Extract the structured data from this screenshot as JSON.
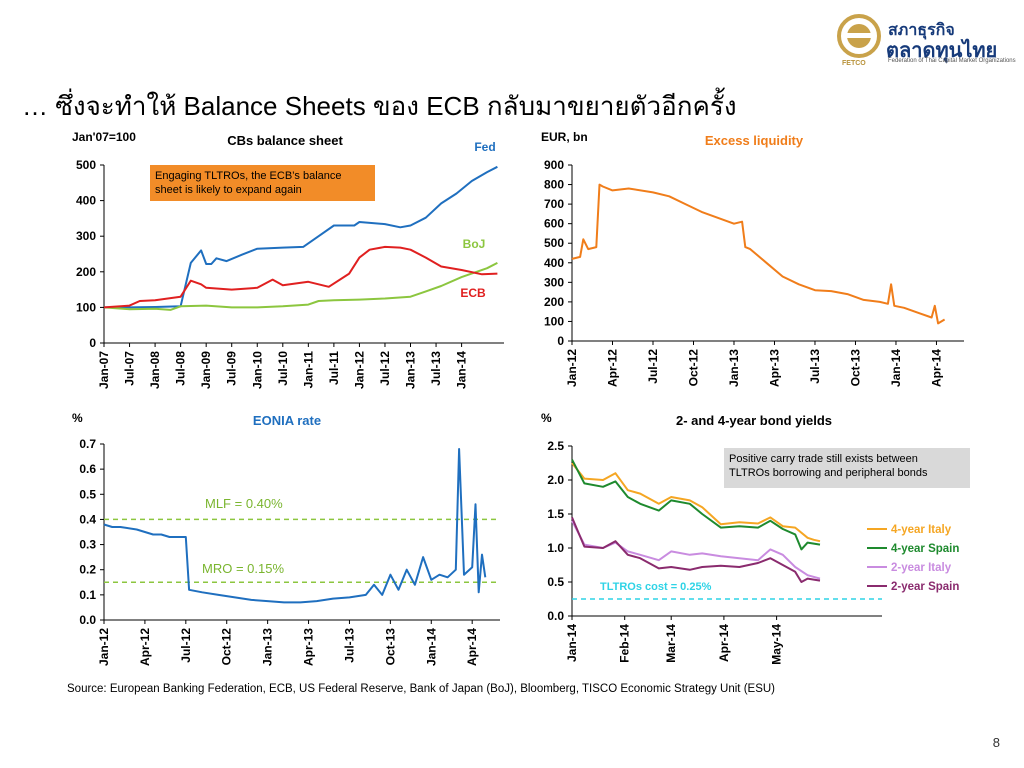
{
  "slide": {
    "title": "… ซึ่งจะทำให้ Balance Sheets ของ ECB กลับมาขยายตัวอีกครั้ง",
    "source": "Source: European Banking Federation, ECB, US Federal Reserve, Bank of Japan (BoJ), Bloomberg, TISCO Economic Strategy Unit (ESU)",
    "page_number": "8",
    "logo": {
      "line1": "สภาธุรกิจ",
      "line2": "ตลาดทุนไทย",
      "subtitle": "Federation of Thai Capital Market Organizations",
      "mark": "FETCO",
      "gold": "#c9a24a",
      "navy": "#163a7a"
    }
  },
  "chart_data": [
    {
      "type": "line",
      "title": "CBs balance sheet",
      "ylabel": "Jan'07=100",
      "ylim": [
        0,
        500
      ],
      "yticks": [
        0,
        100,
        200,
        300,
        400,
        500
      ],
      "xlim": [
        2007.0,
        2014.83
      ],
      "xticks": [
        {
          "label": "Jan-07",
          "x": 2007.0
        },
        {
          "label": "Jul-07",
          "x": 2007.5
        },
        {
          "label": "Jan-08",
          "x": 2008.0
        },
        {
          "label": "Jul-08",
          "x": 2008.5
        },
        {
          "label": "Jan-09",
          "x": 2009.0
        },
        {
          "label": "Jul-09",
          "x": 2009.5
        },
        {
          "label": "Jan-10",
          "x": 2010.0
        },
        {
          "label": "Jul-10",
          "x": 2010.5
        },
        {
          "label": "Jan-11",
          "x": 2011.0
        },
        {
          "label": "Jul-11",
          "x": 2011.5
        },
        {
          "label": "Jan-12",
          "x": 2012.0
        },
        {
          "label": "Jul-12",
          "x": 2012.5
        },
        {
          "label": "Jan-13",
          "x": 2013.0
        },
        {
          "label": "Jul-13",
          "x": 2013.5
        },
        {
          "label": "Jan-14",
          "x": 2014.0
        }
      ],
      "series": [
        {
          "name": "Fed",
          "color": "#1f6fbf",
          "x": [
            2007.0,
            2007.5,
            2008.0,
            2008.5,
            2008.7,
            2008.9,
            2009.0,
            2009.1,
            2009.2,
            2009.4,
            2009.7,
            2010.0,
            2010.5,
            2010.9,
            2011.2,
            2011.5,
            2011.9,
            2012.0,
            2012.5,
            2012.8,
            2013.0,
            2013.3,
            2013.6,
            2013.9,
            2014.2,
            2014.5,
            2014.7
          ],
          "y": [
            100,
            100,
            101,
            103,
            225,
            260,
            222,
            222,
            238,
            230,
            248,
            265,
            268,
            270,
            300,
            330,
            330,
            340,
            334,
            325,
            330,
            352,
            392,
            420,
            455,
            480,
            495
          ]
        },
        {
          "name": "BoJ",
          "color": "#8cc63f",
          "x": [
            2007.0,
            2007.5,
            2008.0,
            2008.3,
            2008.5,
            2009.0,
            2009.5,
            2010.0,
            2010.5,
            2011.0,
            2011.2,
            2011.5,
            2012.0,
            2012.5,
            2013.0,
            2013.3,
            2013.6,
            2014.0,
            2014.5,
            2014.7
          ],
          "y": [
            100,
            95,
            96,
            93,
            103,
            105,
            100,
            100,
            103,
            108,
            118,
            120,
            122,
            125,
            130,
            145,
            160,
            185,
            210,
            225
          ]
        },
        {
          "name": "ECB",
          "color": "#e02020",
          "x": [
            2007.0,
            2007.5,
            2007.7,
            2008.0,
            2008.5,
            2008.7,
            2008.9,
            2009.0,
            2009.5,
            2010.0,
            2010.3,
            2010.5,
            2011.0,
            2011.4,
            2011.8,
            2012.0,
            2012.2,
            2012.5,
            2012.8,
            2013.0,
            2013.3,
            2013.6,
            2014.0,
            2014.4,
            2014.7
          ],
          "y": [
            100,
            105,
            118,
            120,
            130,
            175,
            165,
            155,
            150,
            155,
            178,
            162,
            172,
            158,
            195,
            240,
            262,
            270,
            268,
            262,
            240,
            215,
            205,
            193,
            195
          ]
        }
      ],
      "annotations": [
        {
          "text": "Engaging TLTROs, the ECB’s balance sheet is likely to expand again",
          "fill": "#f28c28"
        }
      ]
    },
    {
      "type": "line",
      "title": "Excess liquidity",
      "ylabel": "EUR, bn",
      "ylim": [
        0,
        900
      ],
      "yticks": [
        0,
        100,
        200,
        300,
        400,
        500,
        600,
        700,
        800,
        900
      ],
      "xlim": [
        2012.0,
        2014.42
      ],
      "xticks": [
        {
          "label": "Jan-12",
          "x": 2012.0
        },
        {
          "label": "Apr-12",
          "x": 2012.25
        },
        {
          "label": "Jul-12",
          "x": 2012.5
        },
        {
          "label": "Oct-12",
          "x": 2012.75
        },
        {
          "label": "Jan-13",
          "x": 2013.0
        },
        {
          "label": "Apr-13",
          "x": 2013.25
        },
        {
          "label": "Jul-13",
          "x": 2013.5
        },
        {
          "label": "Oct-13",
          "x": 2013.75
        },
        {
          "label": "Jan-14",
          "x": 2014.0
        },
        {
          "label": "Apr-14",
          "x": 2014.25
        }
      ],
      "series": [
        {
          "name": "",
          "color": "#f07d1a",
          "x": [
            2012.0,
            2012.05,
            2012.07,
            2012.1,
            2012.15,
            2012.17,
            2012.19,
            2012.25,
            2012.35,
            2012.5,
            2012.6,
            2012.7,
            2012.8,
            2012.9,
            2013.0,
            2013.05,
            2013.07,
            2013.1,
            2013.2,
            2013.3,
            2013.4,
            2013.5,
            2013.6,
            2013.7,
            2013.8,
            2013.9,
            2013.95,
            2013.97,
            2013.99,
            2014.05,
            2014.15,
            2014.22,
            2014.24,
            2014.26,
            2014.3
          ],
          "y": [
            420,
            430,
            520,
            470,
            480,
            800,
            790,
            770,
            780,
            760,
            740,
            700,
            660,
            630,
            600,
            610,
            480,
            470,
            400,
            330,
            290,
            260,
            255,
            240,
            210,
            200,
            190,
            290,
            180,
            170,
            140,
            120,
            180,
            90,
            110
          ]
        }
      ]
    },
    {
      "type": "line",
      "title": "EONIA rate",
      "ylabel": "%",
      "ylim": [
        0,
        0.7
      ],
      "yticks": [
        "0.0",
        "0.1",
        "0.2",
        "0.3",
        "0.4",
        "0.5",
        "0.6",
        "0.7"
      ],
      "xlim": [
        2012.0,
        2014.42
      ],
      "xticks": [
        {
          "label": "Jan-12",
          "x": 2012.0
        },
        {
          "label": "Apr-12",
          "x": 2012.25
        },
        {
          "label": "Jul-12",
          "x": 2012.5
        },
        {
          "label": "Oct-12",
          "x": 2012.75
        },
        {
          "label": "Jan-13",
          "x": 2013.0
        },
        {
          "label": "Apr-13",
          "x": 2013.25
        },
        {
          "label": "Jul-13",
          "x": 2013.5
        },
        {
          "label": "Oct-13",
          "x": 2013.75
        },
        {
          "label": "Jan-14",
          "x": 2014.0
        },
        {
          "label": "Apr-14",
          "x": 2014.25
        }
      ],
      "series": [
        {
          "name": "",
          "color": "#1f6fbf",
          "x": [
            2012.0,
            2012.05,
            2012.1,
            2012.2,
            2012.25,
            2012.3,
            2012.35,
            2012.4,
            2012.45,
            2012.5,
            2012.52,
            2012.6,
            2012.7,
            2012.8,
            2012.9,
            2013.0,
            2013.1,
            2013.2,
            2013.3,
            2013.35,
            2013.4,
            2013.5,
            2013.6,
            2013.65,
            2013.7,
            2013.75,
            2013.8,
            2013.85,
            2013.9,
            2013.95,
            2014.0,
            2014.05,
            2014.1,
            2014.15,
            2014.17,
            2014.2,
            2014.25,
            2014.27,
            2014.29,
            2014.31,
            2014.33
          ],
          "y": [
            0.38,
            0.37,
            0.37,
            0.36,
            0.35,
            0.34,
            0.34,
            0.33,
            0.33,
            0.33,
            0.12,
            0.11,
            0.1,
            0.09,
            0.08,
            0.075,
            0.07,
            0.07,
            0.075,
            0.08,
            0.085,
            0.09,
            0.1,
            0.14,
            0.1,
            0.18,
            0.12,
            0.2,
            0.14,
            0.25,
            0.16,
            0.18,
            0.17,
            0.2,
            0.68,
            0.18,
            0.21,
            0.46,
            0.11,
            0.26,
            0.17
          ]
        }
      ],
      "reference_lines": [
        {
          "label": "MLF = 0.40%",
          "y": 0.4,
          "color": "#8cc63f"
        },
        {
          "label": "MRO = 0.15%",
          "y": 0.15,
          "color": "#8cc63f"
        }
      ]
    },
    {
      "type": "line",
      "title": "2- and 4-year bond yields",
      "ylabel": "%",
      "ylim": [
        0,
        2.5
      ],
      "yticks": [
        "0.0",
        "0.5",
        "1.0",
        "1.5",
        "2.0",
        "2.5"
      ],
      "xlim": [
        2014.0,
        2014.5
      ],
      "xticks": [
        {
          "label": "Jan-14",
          "x": 2014.0
        },
        {
          "label": "Feb-14",
          "x": 2014.085
        },
        {
          "label": "Mar-14",
          "x": 2014.16
        },
        {
          "label": "Apr-14",
          "x": 2014.245
        },
        {
          "label": "May-14",
          "x": 2014.33
        }
      ],
      "series": [
        {
          "name": "4-year Italy",
          "color": "#f5a623",
          "x": [
            2014.0,
            2014.02,
            2014.05,
            2014.07,
            2014.09,
            2014.11,
            2014.14,
            2014.16,
            2014.19,
            2014.21,
            2014.24,
            2014.27,
            2014.3,
            2014.32,
            2014.34,
            2014.36,
            2014.38,
            2014.39,
            2014.4
          ],
          "y": [
            2.25,
            2.02,
            2.0,
            2.1,
            1.85,
            1.8,
            1.65,
            1.75,
            1.7,
            1.6,
            1.35,
            1.38,
            1.36,
            1.45,
            1.32,
            1.3,
            1.15,
            1.12,
            1.1
          ]
        },
        {
          "name": "4-year Spain",
          "color": "#1e8a2e",
          "x": [
            2014.0,
            2014.02,
            2014.05,
            2014.07,
            2014.09,
            2014.11,
            2014.14,
            2014.16,
            2014.19,
            2014.21,
            2014.24,
            2014.27,
            2014.3,
            2014.32,
            2014.34,
            2014.36,
            2014.37,
            2014.38,
            2014.4
          ],
          "y": [
            2.3,
            1.95,
            1.9,
            1.98,
            1.75,
            1.65,
            1.55,
            1.7,
            1.65,
            1.5,
            1.3,
            1.32,
            1.3,
            1.4,
            1.28,
            1.2,
            0.98,
            1.08,
            1.05
          ]
        },
        {
          "name": "2-year Italy",
          "color": "#c98ce0",
          "x": [
            2014.0,
            2014.02,
            2014.05,
            2014.07,
            2014.09,
            2014.11,
            2014.14,
            2014.16,
            2014.19,
            2014.21,
            2014.24,
            2014.27,
            2014.3,
            2014.32,
            2014.34,
            2014.36,
            2014.38,
            2014.4
          ],
          "y": [
            1.4,
            1.05,
            1.0,
            1.08,
            0.95,
            0.9,
            0.82,
            0.95,
            0.9,
            0.92,
            0.88,
            0.85,
            0.82,
            0.98,
            0.9,
            0.72,
            0.6,
            0.55
          ]
        },
        {
          "name": "2-year Spain",
          "color": "#8a2b6e",
          "x": [
            2014.0,
            2014.02,
            2014.05,
            2014.07,
            2014.09,
            2014.11,
            2014.14,
            2014.16,
            2014.19,
            2014.21,
            2014.24,
            2014.27,
            2014.3,
            2014.32,
            2014.34,
            2014.36,
            2014.37,
            2014.38,
            2014.4
          ],
          "y": [
            1.45,
            1.02,
            1.0,
            1.1,
            0.9,
            0.85,
            0.7,
            0.72,
            0.68,
            0.72,
            0.74,
            0.72,
            0.78,
            0.85,
            0.75,
            0.65,
            0.5,
            0.55,
            0.52
          ]
        }
      ],
      "reference_lines": [
        {
          "label": "TLTROs cost = 0.25%",
          "y": 0.25,
          "color": "#2ed3e6"
        }
      ],
      "annotations": [
        {
          "text": "Positive carry trade still exists between TLTROs borrowing and peripheral bonds",
          "fill": "#d9d9d9"
        }
      ]
    }
  ]
}
